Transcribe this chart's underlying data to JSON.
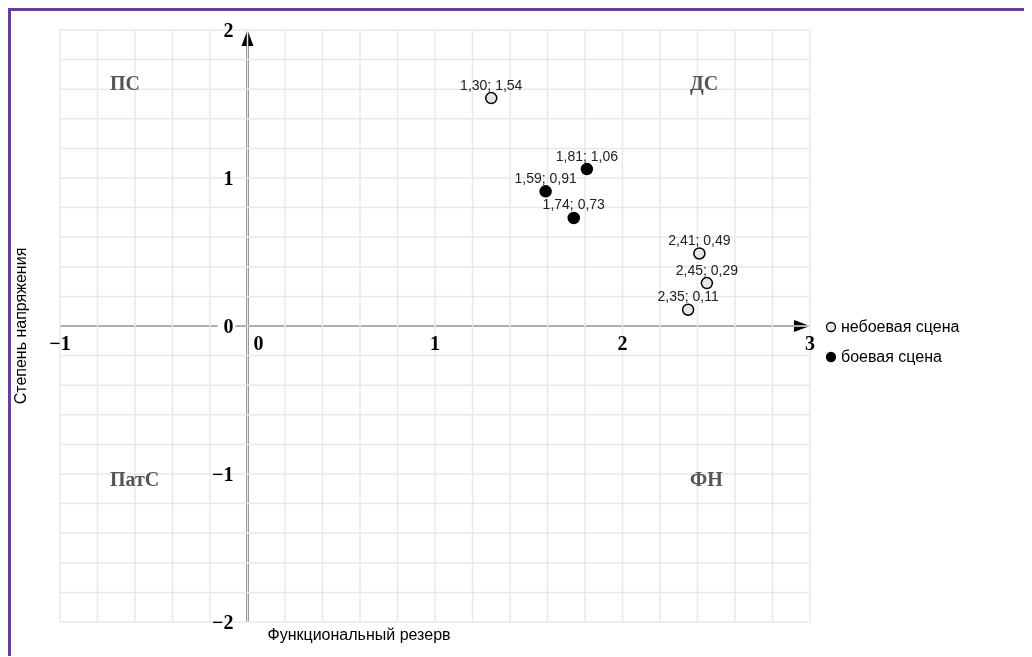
{
  "chart_data": {
    "type": "scatter",
    "xlabel": "Функциональный резерв",
    "ylabel": "Степень напряжения",
    "series": [
      {
        "name": "небоевая сцена",
        "color": "#e6e6e6",
        "x": [
          1.3,
          2.41,
          2.45,
          2.35
        ],
        "values": [
          1.54,
          0.49,
          0.29,
          0.11
        ],
        "value_labels": [
          "1,30; 1,54",
          "2,41; 0,49",
          "2,45; 0,29",
          "2,35; 0,11"
        ]
      },
      {
        "name": "боевая сцена",
        "color": "#000000",
        "x": [
          1.81,
          1.59,
          1.74
        ],
        "values": [
          1.06,
          0.91,
          0.73
        ],
        "value_labels": [
          "1,81; 1,06",
          "1,59; 0,91",
          "1,74; 0,73"
        ]
      }
    ],
    "annotations": [
      "ПС",
      "ДС",
      "ПатС",
      "ФН"
    ],
    "xlim": [
      -1,
      3
    ],
    "xticks": [
      -1,
      {
        "value": -0.8,
        "label": null
      },
      {
        "value": -0.6,
        "label": null
      },
      {
        "value": -0.4,
        "label": null
      },
      {
        "value": -0.2,
        "label": null
      },
      0,
      {
        "value": 0.2,
        "label": null
      },
      {
        "value": 0.4,
        "label": null
      },
      {
        "value": 0.6,
        "label": null
      },
      {
        "value": 0.8,
        "label": null
      },
      1,
      {
        "value": 1.2,
        "label": null
      },
      {
        "value": 1.4,
        "label": null
      },
      {
        "value": 1.6,
        "label": null
      },
      {
        "value": 1.8,
        "label": null
      },
      2,
      {
        "value": 2.2,
        "label": null
      },
      {
        "value": 2.4,
        "label": null
      },
      {
        "value": 2.6,
        "label": null
      },
      {
        "value": 2.8,
        "label": null
      },
      3
    ],
    "ylim": [
      -2,
      2
    ],
    "yticks": [
      -2,
      {
        "value": -1.8,
        "label": null
      },
      {
        "value": -1.6,
        "label": null
      },
      {
        "value": -1.4,
        "label": null
      },
      {
        "value": -1.2,
        "label": null
      },
      -1,
      {
        "value": -0.8,
        "label": null
      },
      {
        "value": -0.6,
        "label": null
      },
      {
        "value": -0.4,
        "label": null
      },
      {
        "value": -0.2,
        "label": null
      },
      0,
      {
        "value": 0.2,
        "label": null
      },
      {
        "value": 0.4,
        "label": null
      },
      {
        "value": 0.6,
        "label": null
      },
      {
        "value": 0.8,
        "label": null
      },
      1,
      {
        "value": 1.2,
        "label": null
      },
      {
        "value": 1.4,
        "label": null
      },
      {
        "value": 1.6,
        "label": null
      },
      {
        "value": 1.8,
        "label": null
      },
      2
    ],
    "grid": true,
    "legend": "right",
    "marker": "circle"
  }
}
